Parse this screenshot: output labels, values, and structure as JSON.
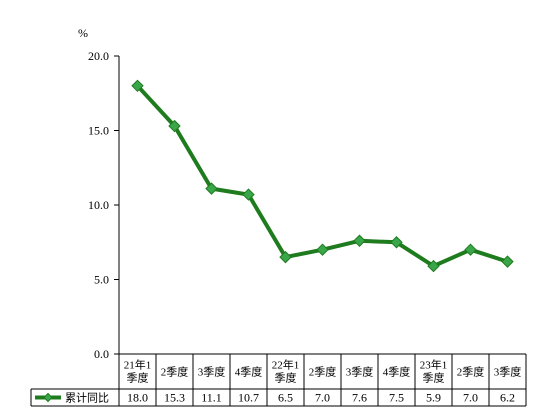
{
  "chart_data": {
    "type": "line",
    "unit": "%",
    "categories": [
      [
        "21年1",
        "季度"
      ],
      [
        "2季度"
      ],
      [
        "3季度"
      ],
      [
        "4季度"
      ],
      [
        "22年1",
        "季度"
      ],
      [
        "2季度"
      ],
      [
        "3季度"
      ],
      [
        "4季度"
      ],
      [
        "23年1",
        "季度"
      ],
      [
        "2季度"
      ],
      [
        "3季度"
      ]
    ],
    "series": [
      {
        "name": "累计同比",
        "values": [
          18.0,
          15.3,
          11.1,
          10.7,
          6.5,
          7.0,
          7.6,
          7.5,
          5.9,
          7.0,
          6.2
        ],
        "value_labels": [
          "18.0",
          "15.3",
          "11.1",
          "10.7",
          "6.5",
          "7.0",
          "7.6",
          "7.5",
          "5.9",
          "7.0",
          "6.2"
        ],
        "color": "#1e7b1e",
        "marker_color": "#3aa64a"
      }
    ],
    "yticks": [
      "0.0",
      "5.0",
      "10.0",
      "15.0",
      "20.0"
    ],
    "ylim": [
      0,
      20
    ],
    "grid": false,
    "legend": "data-table-left"
  }
}
